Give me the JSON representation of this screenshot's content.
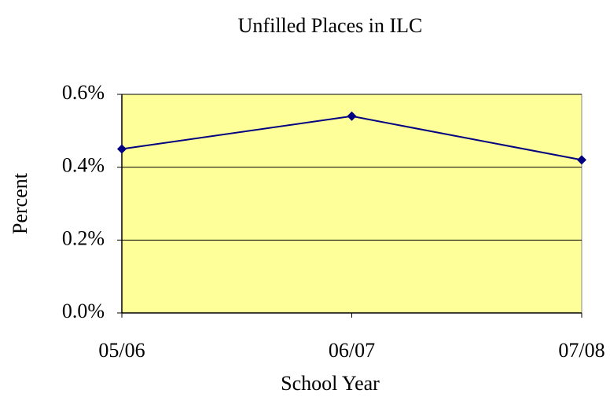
{
  "chart_data": {
    "type": "line",
    "title": "Unfilled Places in ILC",
    "x_label": "School Year",
    "y_label": "Percent",
    "categories": [
      "05/06",
      "06/07",
      "07/08"
    ],
    "series": [
      {
        "name": "Unfilled Places",
        "color": "#000080",
        "values": [
          0.45,
          0.54,
          0.42
        ]
      }
    ],
    "ylim": [
      0,
      0.6
    ],
    "yticks": [
      {
        "value": 0,
        "label": "0.0%"
      },
      {
        "value": 0.2,
        "label": "0.2%"
      },
      {
        "value": 0.4,
        "label": "0.4%"
      },
      {
        "value": 0.6,
        "label": "0.6%"
      }
    ],
    "grid": true,
    "plot_background": "#ffff99"
  }
}
